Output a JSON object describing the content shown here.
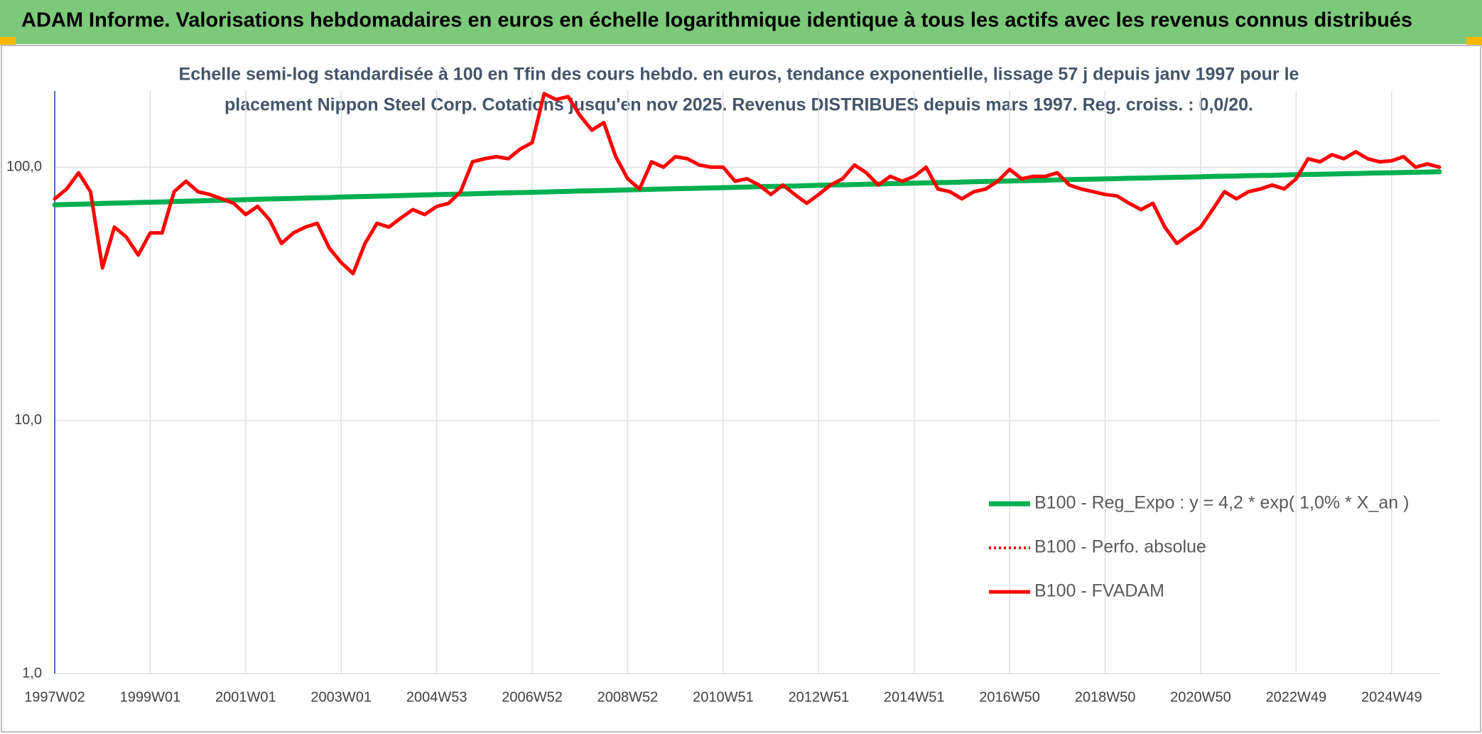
{
  "chart_data": {
    "type": "line",
    "title": "ADAM Informe. Valorisations hebdomadaires en euros en échelle logarithmique identique à tous les actifs avec les revenus connus distribués",
    "subtitle": [
      "Echelle semi-log standardisée à 100 en Tfin des cours hebdo. en euros, tendance exponentielle, lissage 57 j depuis janv 1997 pour le",
      "placement Nippon Steel Corp. Cotations jusqu'en nov 2025. Revenus DISTRIBUES depuis mars 1997. Reg. croiss. : 0,0/20."
    ],
    "categories": [
      "1997W02",
      null,
      null,
      null,
      null,
      null,
      null,
      null,
      "1999W01",
      null,
      null,
      null,
      null,
      null,
      null,
      null,
      "2001W01",
      null,
      null,
      null,
      null,
      null,
      null,
      null,
      "2003W01",
      null,
      null,
      null,
      null,
      null,
      null,
      null,
      "2004W53",
      null,
      null,
      null,
      null,
      null,
      null,
      null,
      "2006W52",
      null,
      null,
      null,
      null,
      null,
      null,
      null,
      "2008W52",
      null,
      null,
      null,
      null,
      null,
      null,
      null,
      "2010W51",
      null,
      null,
      null,
      null,
      null,
      null,
      null,
      "2012W51",
      null,
      null,
      null,
      null,
      null,
      null,
      null,
      "2014W51",
      null,
      null,
      null,
      null,
      null,
      null,
      null,
      "2016W50",
      null,
      null,
      null,
      null,
      null,
      null,
      null,
      "2018W50",
      null,
      null,
      null,
      null,
      null,
      null,
      null,
      "2020W50",
      null,
      null,
      null,
      null,
      null,
      null,
      null,
      "2022W49",
      null,
      null,
      null,
      null,
      null,
      null,
      null,
      "2024W49",
      null,
      null,
      null,
      null
    ],
    "log_scale": true,
    "ylim": [
      1,
      200
    ],
    "yticks": [
      {
        "value": 1,
        "label": "1,0"
      },
      {
        "value": 10,
        "label": "10,0"
      },
      {
        "value": 100,
        "label": "100,0"
      }
    ],
    "grid": true,
    "legend": "right",
    "series": [
      {
        "name": "B100 - Reg_Expo : y = 4,2 * exp( 1,0% *  X_an )",
        "color": "#00b050",
        "style": "solid",
        "values": [
          71.0,
          71.2,
          71.4,
          71.6,
          71.9,
          72.1,
          72.3,
          72.5,
          72.7,
          72.9,
          73.2,
          73.4,
          73.6,
          73.8,
          74.0,
          74.2,
          74.4,
          74.7,
          74.9,
          75.1,
          75.3,
          75.5,
          75.7,
          75.9,
          76.2,
          76.4,
          76.6,
          76.8,
          77.0,
          77.2,
          77.5,
          77.7,
          77.9,
          78.1,
          78.3,
          78.5,
          78.7,
          79.0,
          79.2,
          79.4,
          79.6,
          79.8,
          80.0,
          80.2,
          80.5,
          80.7,
          80.9,
          81.1,
          81.3,
          81.5,
          81.8,
          82.0,
          82.2,
          82.4,
          82.6,
          82.8,
          83.0,
          83.3,
          83.5,
          83.7,
          83.9,
          84.1,
          84.3,
          84.5,
          84.8,
          85.0,
          85.2,
          85.4,
          85.6,
          85.8,
          86.1,
          86.3,
          86.5,
          86.7,
          86.9,
          87.1,
          87.3,
          87.6,
          87.8,
          88.0,
          88.2,
          88.4,
          88.6,
          88.8,
          89.1,
          89.3,
          89.5,
          89.7,
          89.9,
          90.1,
          90.4,
          90.6,
          90.8,
          91.0,
          91.2,
          91.4,
          91.6,
          91.9,
          92.1,
          92.3,
          92.5,
          92.7,
          92.9,
          93.1,
          93.4,
          93.6,
          93.8,
          94.0,
          94.2,
          94.4,
          94.7,
          94.9,
          95.1,
          95.3,
          95.5,
          95.7,
          95.9
        ]
      },
      {
        "name": "B100 - Perfo. absolue",
        "color": "#ff0000",
        "style": "dotted",
        "values": [
          75,
          82,
          95,
          80,
          40,
          58,
          53,
          45,
          55,
          55,
          80,
          88,
          80,
          78,
          75,
          72,
          65,
          70,
          62,
          50,
          55,
          58,
          60,
          48,
          42,
          38,
          50,
          60,
          58,
          63,
          68,
          65,
          70,
          72,
          80,
          105,
          108,
          110,
          108,
          118,
          125,
          195,
          185,
          190,
          160,
          140,
          150,
          110,
          90,
          82,
          105,
          100,
          110,
          108,
          102,
          100,
          100,
          88,
          90,
          85,
          78,
          85,
          78,
          72,
          78,
          85,
          90,
          102,
          95,
          85,
          92,
          88,
          92,
          100,
          82,
          80,
          75,
          80,
          82,
          88,
          98,
          90,
          92,
          92,
          95,
          85,
          82,
          80,
          78,
          77,
          72,
          68,
          72,
          58,
          50,
          54,
          58,
          68,
          80,
          75,
          80,
          82,
          85,
          82,
          90,
          108,
          105,
          112,
          108,
          115,
          108,
          105,
          106,
          110,
          100,
          103,
          100
        ]
      },
      {
        "name": "B100 - FVADAM",
        "color": "#ff0000",
        "style": "solid",
        "values": [
          75,
          82,
          95,
          80,
          40,
          58,
          53,
          45,
          55,
          55,
          80,
          88,
          80,
          78,
          75,
          72,
          65,
          70,
          62,
          50,
          55,
          58,
          60,
          48,
          42,
          38,
          50,
          60,
          58,
          63,
          68,
          65,
          70,
          72,
          80,
          105,
          108,
          110,
          108,
          118,
          125,
          195,
          185,
          190,
          160,
          140,
          150,
          110,
          90,
          82,
          105,
          100,
          110,
          108,
          102,
          100,
          100,
          88,
          90,
          85,
          78,
          85,
          78,
          72,
          78,
          85,
          90,
          102,
          95,
          85,
          92,
          88,
          92,
          100,
          82,
          80,
          75,
          80,
          82,
          88,
          98,
          90,
          92,
          92,
          95,
          85,
          82,
          80,
          78,
          77,
          72,
          68,
          72,
          58,
          50,
          54,
          58,
          68,
          80,
          75,
          80,
          82,
          85,
          82,
          90,
          108,
          105,
          112,
          108,
          115,
          108,
          105,
          106,
          110,
          100,
          103,
          100
        ]
      }
    ]
  }
}
